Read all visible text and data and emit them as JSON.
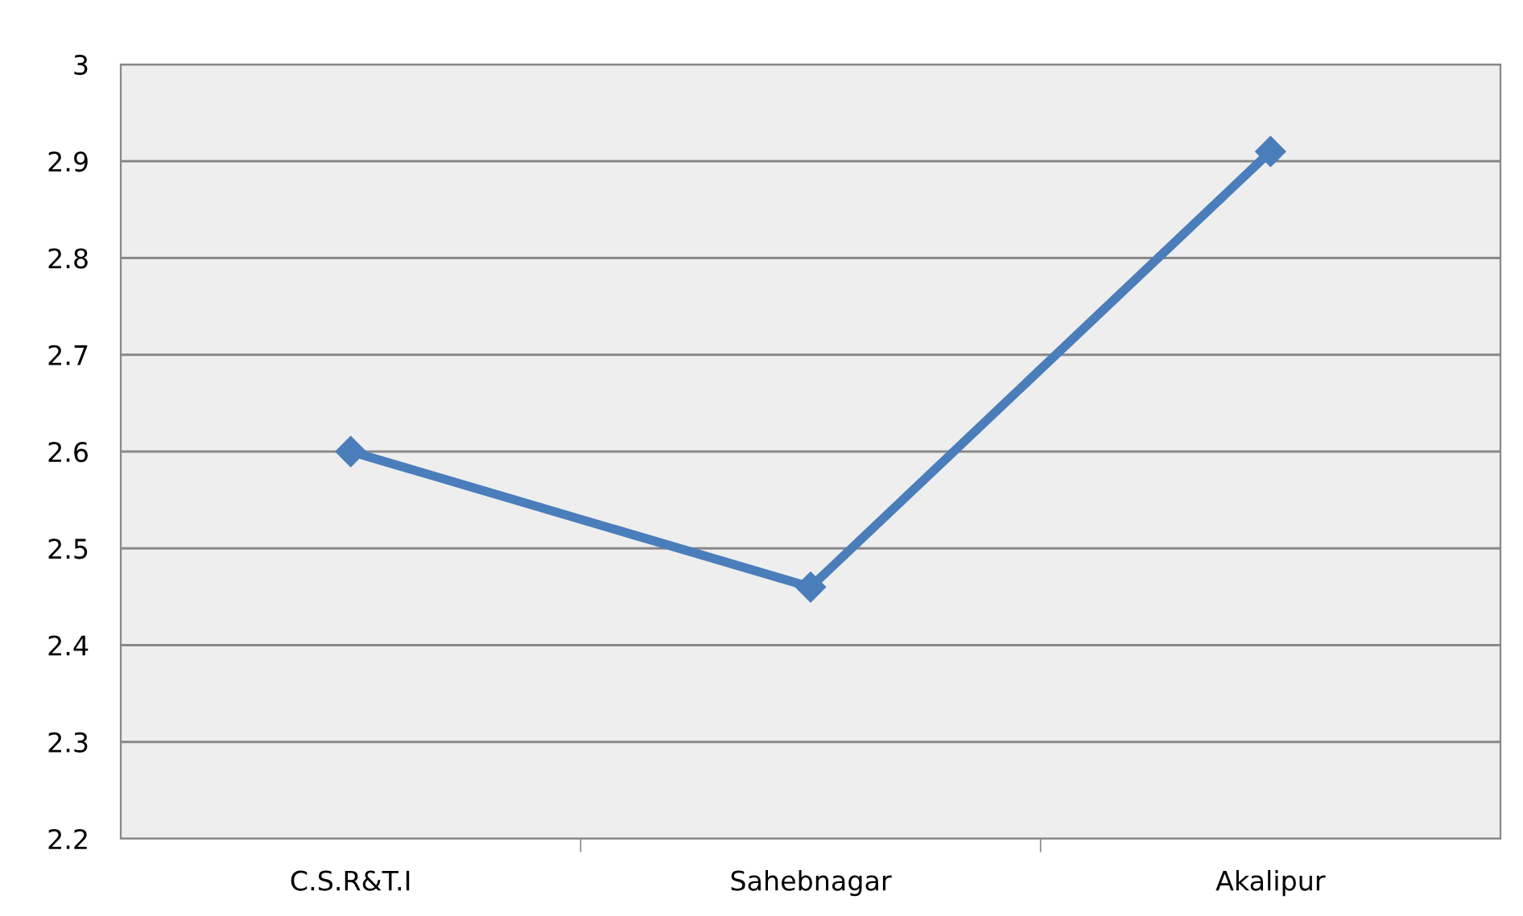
{
  "chart_data": {
    "type": "line",
    "categories": [
      "C.S.R&T.I",
      "Sahebnagar",
      "Akalipur"
    ],
    "series": [
      {
        "color": "#4a7ebb",
        "values": [
          2.6,
          2.46,
          2.91
        ]
      }
    ],
    "ylim": [
      2.2,
      3
    ],
    "yticks": [
      {
        "value": 2.2,
        "label": "2.2"
      },
      {
        "value": 2.3,
        "label": "2.3"
      },
      {
        "value": 2.4,
        "label": "2.4"
      },
      {
        "value": 2.5,
        "label": "2.5"
      },
      {
        "value": 2.6,
        "label": "2.6"
      },
      {
        "value": 2.7,
        "label": "2.7"
      },
      {
        "value": 2.8,
        "label": "2.8"
      },
      {
        "value": 2.9,
        "label": "2.9"
      },
      {
        "value": 3,
        "label": "3"
      }
    ],
    "grid": "y",
    "marker": "diamond",
    "line_style": "solid"
  }
}
